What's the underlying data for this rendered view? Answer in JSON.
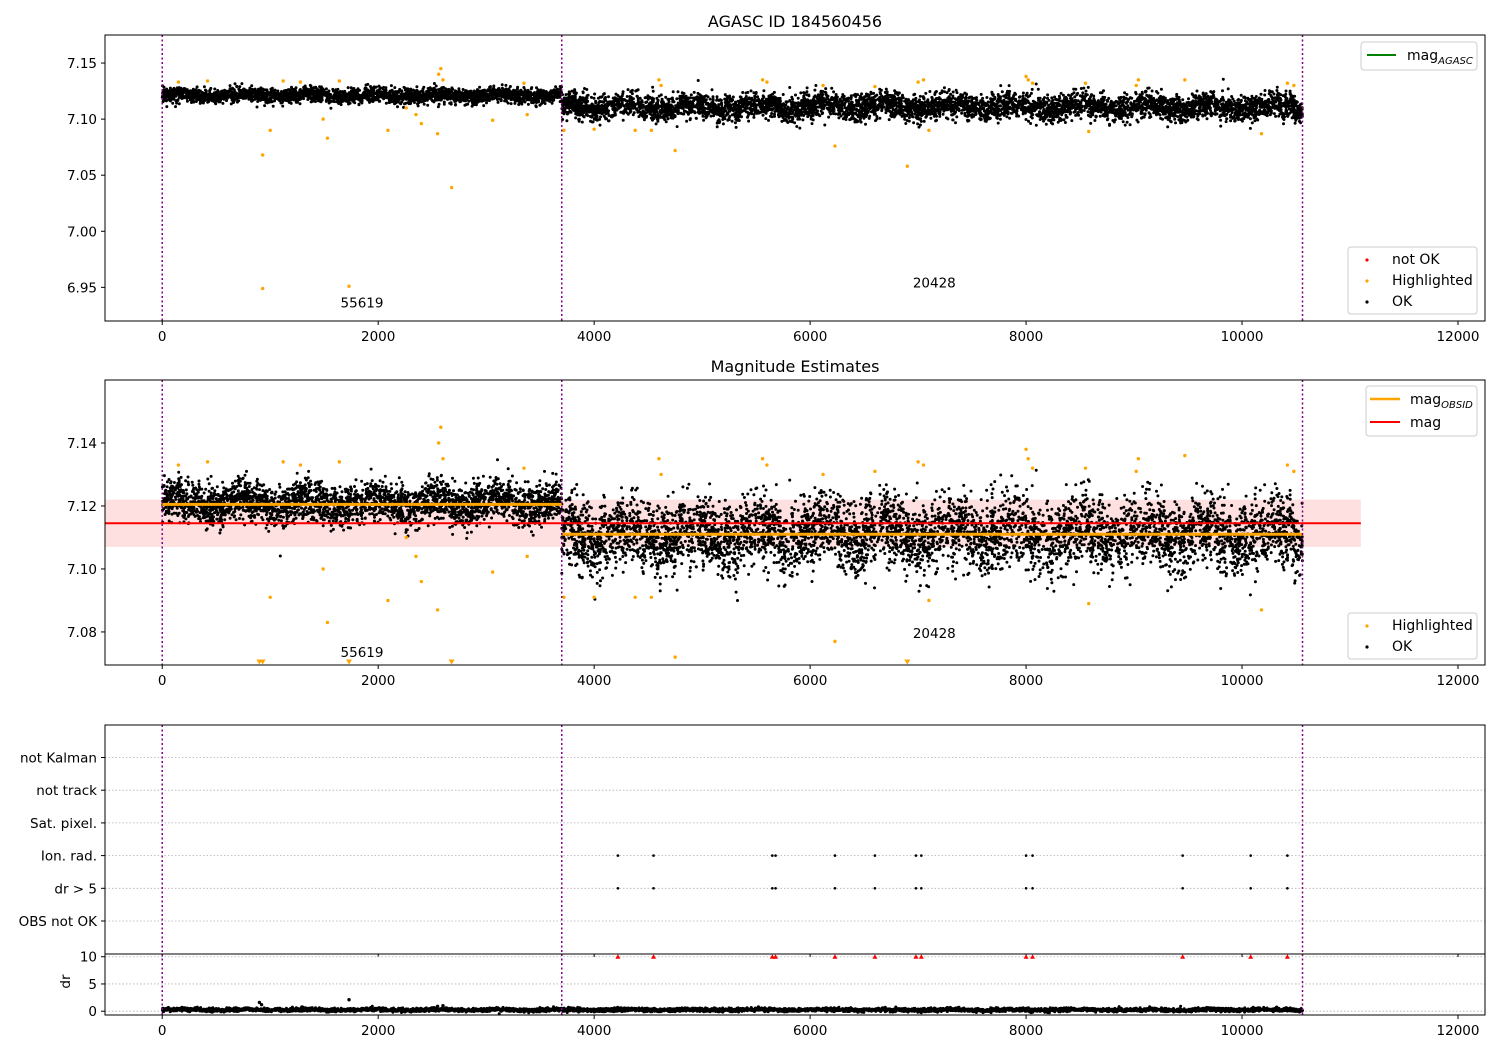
{
  "figure": {
    "colors": {
      "ok": "#000000",
      "highlighted": "#ffa500",
      "not_ok": "#ff0000",
      "mag_agasc": "#008000",
      "mag_obsid": "#ffa500",
      "mag": "#ff0000",
      "mag_band": "#ffe0e0",
      "obs_divider": "#800080",
      "grid": "#b0b0b0"
    }
  },
  "chart_data": [
    {
      "type": "scatter",
      "title": "AGASC ID 184560456",
      "xlim": [
        -530,
        12250
      ],
      "ylim": [
        6.92,
        7.175
      ],
      "x_ticks": [
        "0",
        "2000",
        "4000",
        "6000",
        "8000",
        "10000",
        "12000"
      ],
      "y_ticks": [
        "6.95",
        "7.00",
        "7.05",
        "7.10",
        "7.15"
      ],
      "observation_boundaries": [
        0,
        3700,
        10560
      ],
      "observation_labels": [
        {
          "text": "55619",
          "x": 1850,
          "y": 6.932
        },
        {
          "text": "20428",
          "x": 7150,
          "y": 6.95
        }
      ],
      "series": [
        {
          "name": "OK",
          "color": "ok",
          "segments": [
            {
              "x": [
                0,
                3700
              ],
              "center": 7.121,
              "spread": 0.004
            },
            {
              "x": [
                3700,
                10560
              ],
              "center": 7.111,
              "spread": 0.007
            }
          ]
        },
        {
          "name": "Highlighted",
          "color": "highlighted",
          "points": [
            [
              930,
              7.068
            ],
            [
              1000,
              7.09
            ],
            [
              1490,
              7.1
            ],
            [
              1530,
              7.083
            ],
            [
              2090,
              7.09
            ],
            [
              2260,
              7.11
            ],
            [
              2350,
              7.104
            ],
            [
              2400,
              7.096
            ],
            [
              2550,
              7.087
            ],
            [
              2680,
              7.039
            ],
            [
              3060,
              7.099
            ],
            [
              3380,
              7.104
            ],
            [
              930,
              6.949
            ],
            [
              1730,
              6.951
            ],
            [
              150,
              7.133
            ],
            [
              420,
              7.134
            ],
            [
              1120,
              7.134
            ],
            [
              1280,
              7.133
            ],
            [
              1640,
              7.134
            ],
            [
              2560,
              7.14
            ],
            [
              2580,
              7.145
            ],
            [
              2600,
              7.135
            ],
            [
              3350,
              7.132
            ],
            [
              3720,
              7.09
            ],
            [
              4000,
              7.091
            ],
            [
              4380,
              7.09
            ],
            [
              4530,
              7.09
            ],
            [
              4600,
              7.135
            ],
            [
              4620,
              7.13
            ],
            [
              4750,
              7.072
            ],
            [
              5560,
              7.135
            ],
            [
              5600,
              7.133
            ],
            [
              6120,
              7.13
            ],
            [
              6230,
              7.076
            ],
            [
              6600,
              7.129
            ],
            [
              6900,
              7.058
            ],
            [
              7000,
              7.133
            ],
            [
              7050,
              7.135
            ],
            [
              7100,
              7.09
            ],
            [
              8000,
              7.138
            ],
            [
              8020,
              7.135
            ],
            [
              8060,
              7.132
            ],
            [
              8550,
              7.132
            ],
            [
              8580,
              7.089
            ],
            [
              9040,
              7.135
            ],
            [
              9020,
              7.13
            ],
            [
              9470,
              7.135
            ],
            [
              10180,
              7.087
            ],
            [
              10420,
              7.132
            ],
            [
              10480,
              7.13
            ]
          ]
        }
      ],
      "legends": [
        {
          "position": "upper right",
          "entries": [
            {
              "label": "mag",
              "subscript": "AGASC",
              "kind": "line",
              "color": "mag_agasc"
            }
          ]
        },
        {
          "position": "lower right",
          "entries": [
            {
              "label": "not OK",
              "kind": "marker",
              "color": "not_ok"
            },
            {
              "label": "Highlighted",
              "kind": "marker",
              "color": "highlighted"
            },
            {
              "label": "OK",
              "kind": "marker",
              "color": "ok"
            }
          ]
        }
      ]
    },
    {
      "type": "scatter",
      "title": "Magnitude Estimates",
      "xlim": [
        -530,
        12250
      ],
      "ylim": [
        7.0695,
        7.16
      ],
      "x_ticks": [
        "0",
        "2000",
        "4000",
        "6000",
        "8000",
        "10000",
        "12000"
      ],
      "y_ticks": [
        "7.08",
        "7.10",
        "7.12",
        "7.14"
      ],
      "observation_boundaries": [
        0,
        3700,
        10560
      ],
      "observation_labels": [
        {
          "text": "55619",
          "x": 1850,
          "y": 7.072
        },
        {
          "text": "20428",
          "x": 7150,
          "y": 7.078
        }
      ],
      "mag": {
        "value": 7.1145,
        "band": [
          7.107,
          7.122
        ],
        "x_range": [
          -530,
          11100
        ]
      },
      "mag_obsid": [
        {
          "x": [
            0,
            3700
          ],
          "value": 7.1205
        },
        {
          "x": [
            3700,
            10560
          ],
          "value": 7.111
        }
      ],
      "series": [
        {
          "name": "OK",
          "color": "ok",
          "segments": [
            {
              "x": [
                0,
                3700
              ],
              "center": 7.121,
              "spread": 0.004
            },
            {
              "x": [
                3700,
                10560
              ],
              "center": 7.111,
              "spread": 0.007
            }
          ]
        },
        {
          "name": "Highlighted",
          "color": "highlighted",
          "points": [
            [
              150,
              7.133
            ],
            [
              420,
              7.134
            ],
            [
              1120,
              7.134
            ],
            [
              1280,
              7.133
            ],
            [
              1640,
              7.134
            ],
            [
              2560,
              7.14
            ],
            [
              2580,
              7.145
            ],
            [
              2600,
              7.135
            ],
            [
              3350,
              7.132
            ],
            [
              1000,
              7.091
            ],
            [
              1490,
              7.1
            ],
            [
              1530,
              7.083
            ],
            [
              2090,
              7.09
            ],
            [
              2260,
              7.11
            ],
            [
              2350,
              7.104
            ],
            [
              2400,
              7.096
            ],
            [
              2550,
              7.087
            ],
            [
              3060,
              7.099
            ],
            [
              3380,
              7.104
            ],
            [
              3720,
              7.091
            ],
            [
              4000,
              7.091
            ],
            [
              4380,
              7.091
            ],
            [
              4530,
              7.091
            ],
            [
              4600,
              7.135
            ],
            [
              4620,
              7.13
            ],
            [
              4750,
              7.072
            ],
            [
              5560,
              7.135
            ],
            [
              5600,
              7.133
            ],
            [
              6120,
              7.13
            ],
            [
              6230,
              7.077
            ],
            [
              6600,
              7.131
            ],
            [
              7000,
              7.134
            ],
            [
              7050,
              7.133
            ],
            [
              7100,
              7.09
            ],
            [
              8000,
              7.138
            ],
            [
              8020,
              7.135
            ],
            [
              8060,
              7.132
            ],
            [
              8550,
              7.132
            ],
            [
              8580,
              7.089
            ],
            [
              9040,
              7.135
            ],
            [
              9020,
              7.131
            ],
            [
              9470,
              7.136
            ],
            [
              10180,
              7.087
            ],
            [
              10420,
              7.133
            ],
            [
              10480,
              7.131
            ]
          ]
        },
        {
          "name": "Highlighted (off-scale)",
          "color": "highlighted",
          "marker": "triangle-down",
          "points": [
            [
              900,
              7.0703
            ],
            [
              930,
              7.0703
            ],
            [
              1730,
              7.0703
            ],
            [
              2680,
              7.0703
            ],
            [
              6900,
              7.0703
            ]
          ]
        }
      ],
      "legends": [
        {
          "position": "upper right",
          "entries": [
            {
              "label": "mag",
              "subscript": "OBSID",
              "kind": "line",
              "color": "mag_obsid"
            },
            {
              "label": "mag",
              "kind": "line",
              "color": "mag"
            }
          ]
        },
        {
          "position": "lower right",
          "entries": [
            {
              "label": "Highlighted",
              "kind": "marker",
              "color": "highlighted"
            },
            {
              "label": "OK",
              "kind": "marker",
              "color": "ok"
            }
          ]
        }
      ]
    },
    {
      "type": "scatter",
      "title": "",
      "xlim": [
        -530,
        12250
      ],
      "categories": [
        "OBS not OK",
        "dr > 5",
        "Ion. rad.",
        "Sat. pixel.",
        "not track",
        "not Kalman"
      ],
      "observation_boundaries": [
        0,
        3700,
        10560
      ],
      "flags": {
        "dr > 5": [
          4220,
          4550,
          5650,
          5680,
          6230,
          6600,
          6980,
          7030,
          8000,
          8060,
          9450,
          10080,
          10420
        ],
        "Ion. rad.": [
          4220,
          4550,
          5650,
          5680,
          6230,
          6600,
          6980,
          7030,
          8000,
          8060,
          9450,
          10080,
          10420
        ]
      }
    },
    {
      "type": "scatter",
      "title": "",
      "ylabel": "dr",
      "xlim": [
        -530,
        12250
      ],
      "ylim": [
        -0.7,
        10.5
      ],
      "x_ticks": [
        "0",
        "2000",
        "4000",
        "6000",
        "8000",
        "10000",
        "12000"
      ],
      "y_ticks": [
        "0",
        "5",
        "10"
      ],
      "observation_boundaries": [
        0,
        3700,
        10560
      ],
      "series": [
        {
          "name": "OK",
          "color": "ok",
          "x_range": [
            0,
            10560
          ],
          "center": 0.25,
          "spread": 0.2
        },
        {
          "name": "outliers",
          "color": "ok",
          "points": [
            [
              900,
              1.6
            ],
            [
              920,
              1.2
            ],
            [
              1730,
              2.1
            ],
            [
              2550,
              0.9
            ],
            [
              2600,
              1.0
            ]
          ]
        },
        {
          "name": "not OK",
          "color": "not_ok",
          "marker": "triangle-up",
          "points": [
            [
              4220,
              10
            ],
            [
              4550,
              10
            ],
            [
              5650,
              10
            ],
            [
              5680,
              10
            ],
            [
              6230,
              10
            ],
            [
              6600,
              10
            ],
            [
              6980,
              10
            ],
            [
              7030,
              10
            ],
            [
              8000,
              10
            ],
            [
              8060,
              10
            ],
            [
              9450,
              10
            ],
            [
              10080,
              10
            ],
            [
              10420,
              10
            ]
          ]
        }
      ]
    }
  ]
}
